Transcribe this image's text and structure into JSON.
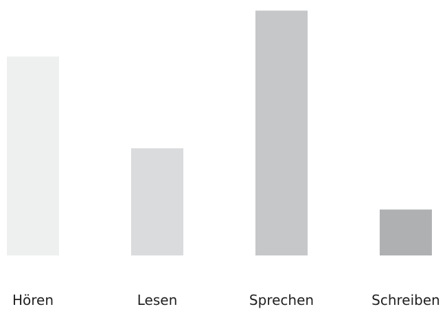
{
  "chart_data": {
    "type": "bar",
    "categories": [
      "Hören",
      "Lesen",
      "Sprechen",
      "Schreiben"
    ],
    "values": [
      3.9,
      2.1,
      4.8,
      0.9
    ],
    "ylim": [
      0,
      4.9
    ],
    "colors": [
      "#eeefef",
      "#dadbdc",
      "#c6c7c8",
      "#afb0b1"
    ],
    "grid": false,
    "legend": "none"
  }
}
